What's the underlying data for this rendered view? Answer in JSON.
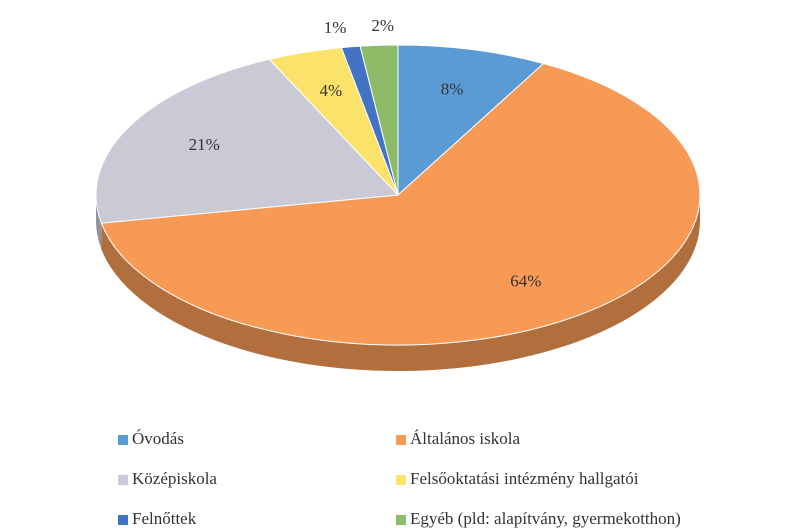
{
  "chart_data": {
    "type": "pie",
    "categories": [
      "Óvodás",
      "Általános iskola",
      "Középiskola",
      "Felsőoktatási intézmény hallgatói",
      "Felnőttek",
      "Egyéb (pld: alapítvány, gyermekotthon)"
    ],
    "values": [
      8,
      64,
      21,
      4,
      1,
      2
    ],
    "value_labels": [
      "8%",
      "64%",
      "21%",
      "4%",
      "1%",
      "2%"
    ],
    "colors": [
      "#5b9bd5",
      "#f79a56",
      "#c9cad6",
      "#fbe36b",
      "#4472c4",
      "#8dbb68"
    ],
    "legend": "bottom"
  }
}
